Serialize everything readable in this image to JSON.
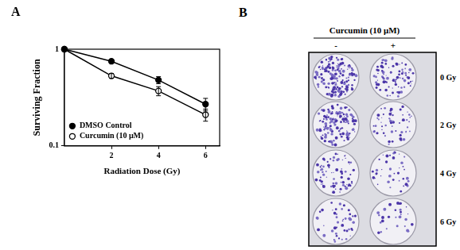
{
  "chart_data": {
    "type": "line",
    "annotations": [
      "A"
    ],
    "x_label": "Radiation Dose (Gy)",
    "y_label": "Surviving Fraction",
    "log": "y",
    "grid": false,
    "legend": "lower left",
    "x": [
      0,
      2,
      4,
      6
    ],
    "xlim": [
      0,
      6.6
    ],
    "xticks": [
      2,
      4,
      6
    ],
    "ylim": [
      0.1,
      1
    ],
    "yticks": [
      0.1,
      1
    ],
    "series": [
      {
        "name": "DMSO Control",
        "color": "#000000",
        "marker": "filled_circle",
        "values": [
          1,
          0.75,
          0.48,
          0.27
        ],
        "errors": [
          0,
          0.03,
          0.04,
          0.04
        ]
      },
      {
        "name": "Curcumin (10 μM)",
        "color": "#000000",
        "marker": "open_circle",
        "values": [
          1,
          0.53,
          0.37,
          0.21
        ],
        "errors": [
          0,
          0.03,
          0.04,
          0.03
        ]
      }
    ]
  },
  "panel_b": {
    "label": "B",
    "header": "Curcumin (10 μM)",
    "columns": [
      "-",
      "+"
    ],
    "rows": [
      "0 Gy",
      "2 Gy",
      "4 Gy",
      "6 Gy"
    ]
  }
}
